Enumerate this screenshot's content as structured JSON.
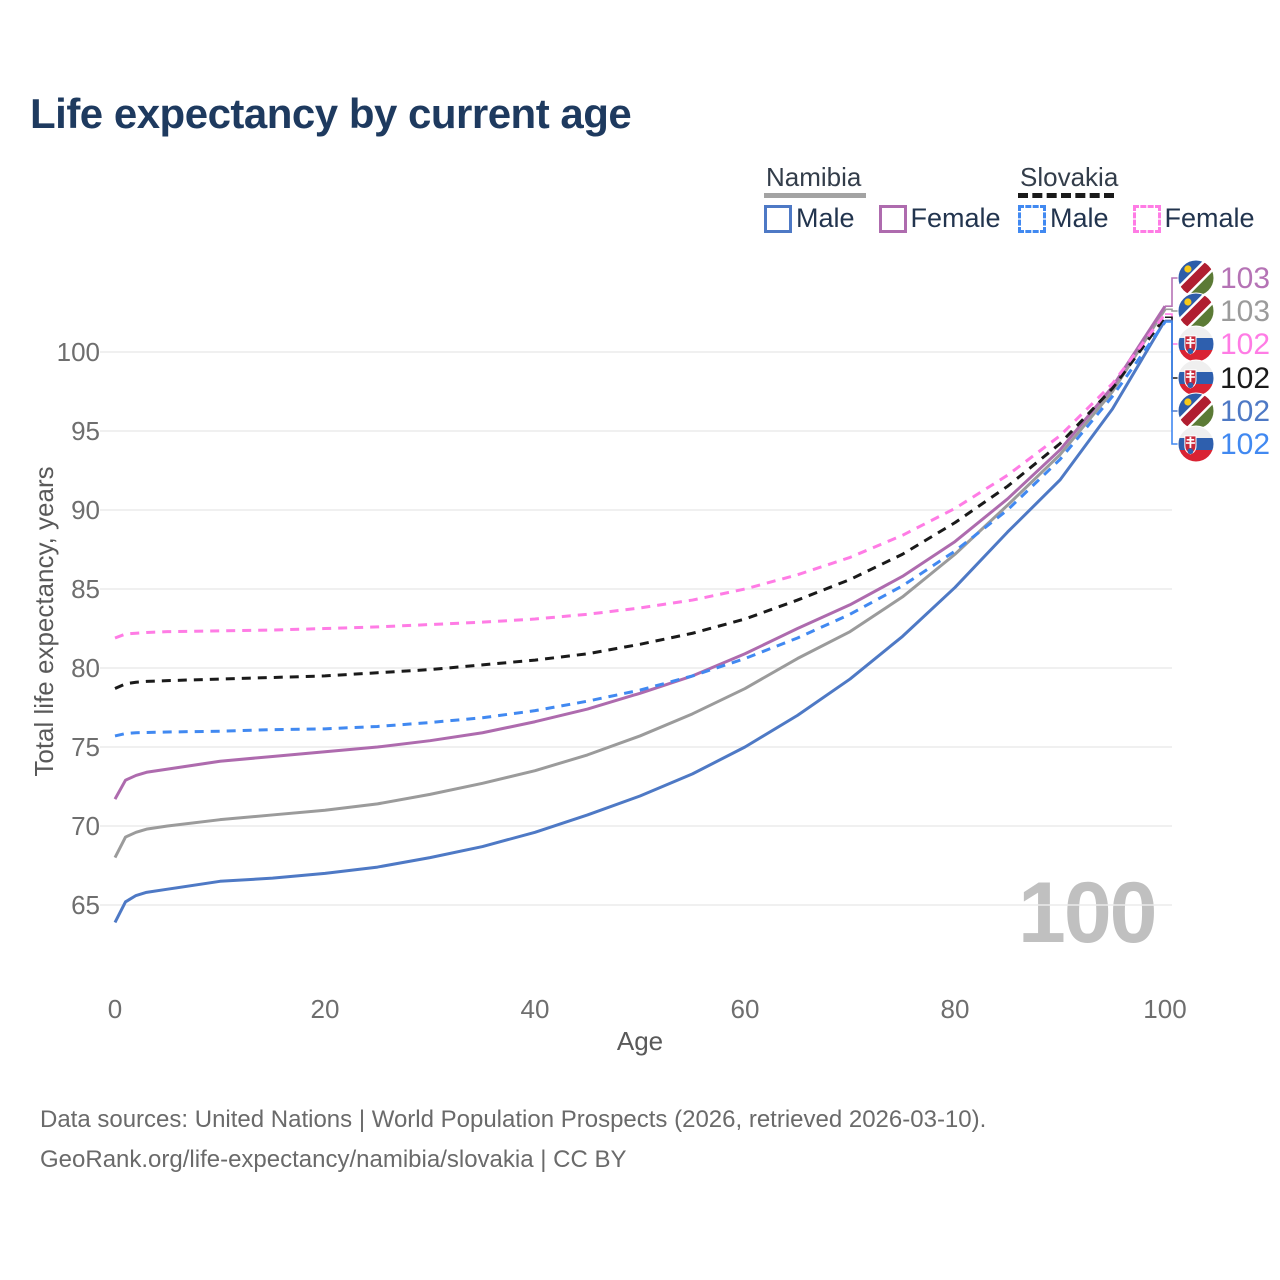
{
  "title": "Life expectancy by current age",
  "legend": {
    "groups": [
      {
        "country": "Namibia",
        "line_style": "solid",
        "underline_color": "#a3a3a3",
        "items": [
          {
            "label": "Male",
            "swatch_color": "#4e79c5",
            "dashed": false
          },
          {
            "label": "Female",
            "swatch_color": "#ae6bae",
            "dashed": false
          }
        ]
      },
      {
        "country": "Slovakia",
        "line_style": "dashed",
        "underline_color": "#1a1a1a",
        "items": [
          {
            "label": "Male",
            "swatch_color": "#4189f1",
            "dashed": true
          },
          {
            "label": "Female",
            "swatch_color": "#ff7ce5",
            "dashed": true
          }
        ]
      }
    ]
  },
  "chart_data": {
    "type": "line",
    "title": "Life expectancy by current age",
    "xlabel": "Age",
    "ylabel": "Total life expectancy, years",
    "x_ticks": [
      0,
      20,
      40,
      60,
      80,
      100
    ],
    "y_ticks": [
      65,
      70,
      75,
      80,
      85,
      90,
      95,
      100
    ],
    "xlim": [
      0,
      100
    ],
    "ylim": [
      62,
      104
    ],
    "grid": "horizontal-only",
    "legend_position": "top-right",
    "x": [
      0,
      1,
      2,
      3,
      5,
      10,
      15,
      20,
      25,
      30,
      35,
      40,
      45,
      50,
      55,
      60,
      65,
      70,
      75,
      80,
      85,
      90,
      95,
      100
    ],
    "series": [
      {
        "name": "Namibia Male",
        "color": "#4e79c5",
        "dashed": false,
        "values": [
          63.9,
          65.2,
          65.6,
          65.8,
          66.0,
          66.5,
          66.7,
          67.0,
          67.4,
          68.0,
          68.7,
          69.6,
          70.7,
          71.9,
          73.3,
          75.0,
          77.0,
          79.3,
          82.0,
          85.1,
          88.6,
          91.9,
          96.4,
          102.0
        ]
      },
      {
        "name": "Namibia",
        "color": "#9b9b9b",
        "dashed": false,
        "values": [
          68.0,
          69.3,
          69.6,
          69.8,
          70.0,
          70.4,
          70.7,
          71.0,
          71.4,
          72.0,
          72.7,
          73.5,
          74.5,
          75.7,
          77.1,
          78.7,
          80.6,
          82.3,
          84.5,
          87.2,
          90.3,
          93.5,
          97.5,
          102.7
        ]
      },
      {
        "name": "Namibia Female",
        "color": "#ae6bae",
        "dashed": false,
        "values": [
          71.7,
          72.9,
          73.2,
          73.4,
          73.6,
          74.1,
          74.4,
          74.7,
          75.0,
          75.4,
          75.9,
          76.6,
          77.4,
          78.4,
          79.5,
          80.9,
          82.5,
          84.0,
          85.8,
          88.0,
          90.7,
          93.8,
          97.8,
          102.9
        ]
      },
      {
        "name": "Slovakia",
        "color": "#1a1a1a",
        "dashed": true,
        "values": [
          78.7,
          79.0,
          79.1,
          79.15,
          79.2,
          79.3,
          79.4,
          79.5,
          79.7,
          79.9,
          80.2,
          80.5,
          80.9,
          81.5,
          82.2,
          83.1,
          84.3,
          85.6,
          87.2,
          89.2,
          91.5,
          94.2,
          97.7,
          102.2
        ]
      },
      {
        "name": "Slovakia Male",
        "color": "#4189f1",
        "dashed": true,
        "values": [
          75.7,
          75.85,
          75.9,
          75.92,
          75.95,
          76.0,
          76.1,
          76.15,
          76.3,
          76.55,
          76.85,
          77.3,
          77.9,
          78.6,
          79.5,
          80.6,
          81.9,
          83.4,
          85.2,
          87.4,
          90.0,
          93.2,
          97.2,
          101.9
        ]
      },
      {
        "name": "Slovakia Female",
        "color": "#ff7ce5",
        "dashed": true,
        "values": [
          81.9,
          82.15,
          82.2,
          82.25,
          82.3,
          82.35,
          82.4,
          82.5,
          82.6,
          82.75,
          82.9,
          83.1,
          83.4,
          83.8,
          84.3,
          85.0,
          85.9,
          87.0,
          88.4,
          90.1,
          92.2,
          94.7,
          98.0,
          102.4
        ]
      }
    ],
    "end_labels": [
      {
        "value": "103",
        "color": "#b573b5",
        "flag": "namibia",
        "series": "Namibia Female"
      },
      {
        "value": "103",
        "color": "#9b9b9b",
        "flag": "namibia",
        "series": "Namibia"
      },
      {
        "value": "102",
        "color": "#ff7ce5",
        "flag": "slovakia",
        "series": "Slovakia Female"
      },
      {
        "value": "102",
        "color": "#1a1a1a",
        "flag": "slovakia",
        "series": "Slovakia"
      },
      {
        "value": "102",
        "color": "#4e79c5",
        "flag": "namibia",
        "series": "Namibia Male"
      },
      {
        "value": "102",
        "color": "#4189f1",
        "flag": "slovakia",
        "series": "Slovakia Male"
      }
    ],
    "watermark": "100"
  },
  "footer": {
    "line1": "Data sources: United Nations | World Population Prospects (2026, retrieved 2026-03-10).",
    "line2": "GeoRank.org/life-expectancy/namibia/slovakia | CC BY"
  }
}
